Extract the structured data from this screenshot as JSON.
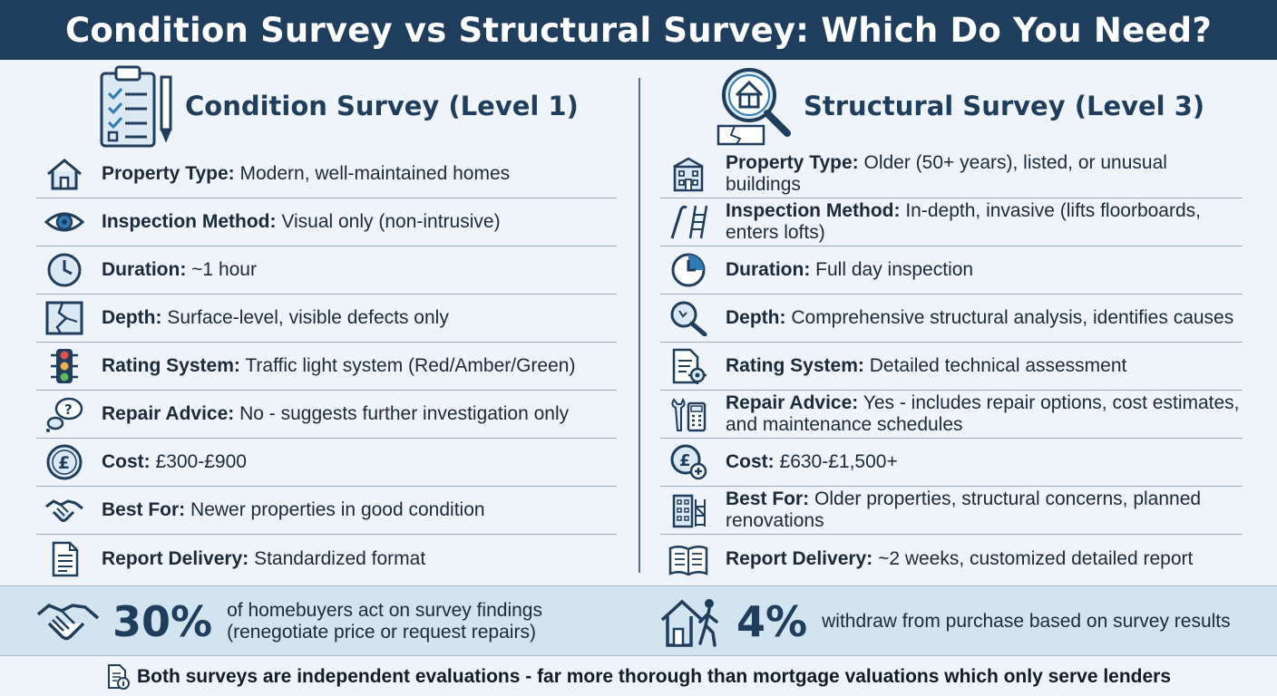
{
  "title": "Condition Survey vs Structural Survey: Which Do You Need?",
  "left": {
    "heading": "Condition Survey (Level 1)",
    "heading_icon": "clipboard-checklist-icon",
    "rows": [
      {
        "icon": "house-icon",
        "label": "Property Type:",
        "value": "Modern, well-maintained homes"
      },
      {
        "icon": "eye-icon",
        "label": "Inspection Method:",
        "value": "Visual only (non-intrusive)"
      },
      {
        "icon": "clock-icon",
        "label": "Duration:",
        "value": "~1 hour"
      },
      {
        "icon": "cracked-wall-icon",
        "label": "Depth:",
        "value": "Surface-level, visible defects only"
      },
      {
        "icon": "traffic-light-icon",
        "label": "Rating System:",
        "value": "Traffic light system (Red/Amber/Green)"
      },
      {
        "icon": "question-bubble-icon",
        "label": "Repair Advice:",
        "value": "No - suggests further investigation only"
      },
      {
        "icon": "pound-coin-icon",
        "label": "Cost:",
        "value": "£300-£900"
      },
      {
        "icon": "handshake-icon",
        "label": "Best For:",
        "value": "Newer properties in good condition"
      },
      {
        "icon": "document-icon",
        "label": "Report Delivery:",
        "value": "Standardized format"
      }
    ]
  },
  "right": {
    "heading": "Structural Survey (Level 3)",
    "heading_icon": "magnifier-house-icon",
    "rows": [
      {
        "icon": "old-building-icon",
        "label": "Property Type:",
        "value": "Older (50+ years), listed, or unusual buildings"
      },
      {
        "icon": "crowbar-ladder-icon",
        "label": "Inspection Method:",
        "value": "In-depth, invasive (lifts floorboards, enters lofts)"
      },
      {
        "icon": "clock-icon",
        "label": "Duration:",
        "value": "Full day inspection"
      },
      {
        "icon": "magnifier-icon",
        "label": "Depth:",
        "value": "Comprehensive structural analysis, identifies causes"
      },
      {
        "icon": "document-gear-icon",
        "label": "Rating System:",
        "value": "Detailed technical assessment"
      },
      {
        "icon": "wrench-calculator-icon",
        "label": "Repair Advice:",
        "value": "Yes - includes repair options, cost estimates, and maintenance schedules"
      },
      {
        "icon": "pound-coin-plus-icon",
        "label": "Cost:",
        "value": "£630-£1,500+"
      },
      {
        "icon": "building-scaffold-icon",
        "label": "Best For:",
        "value": "Older properties, structural concerns, planned renovations"
      },
      {
        "icon": "open-book-icon",
        "label": "Report Delivery:",
        "value": "~2 weeks, customized detailed report"
      }
    ]
  },
  "stats": [
    {
      "icon": "handshake-icon",
      "value": "30%",
      "text_line1": "of homebuyers act on survey findings",
      "text_line2": "(renegotiate price or request repairs)"
    },
    {
      "icon": "house-walking-person-icon",
      "value": "4%",
      "text_line1": "withdraw from purchase based on survey results",
      "text_line2": ""
    }
  ],
  "footer": {
    "icon": "document-info-icon",
    "text": "Both surveys are independent evaluations - far more thorough than mortgage valuations which only serve lenders"
  },
  "colors": {
    "title_bg": "#1f3d5c",
    "accent": "#1f3d5c",
    "page_bg": "#eef4f9",
    "stats_bg": "#d2e4f0"
  }
}
